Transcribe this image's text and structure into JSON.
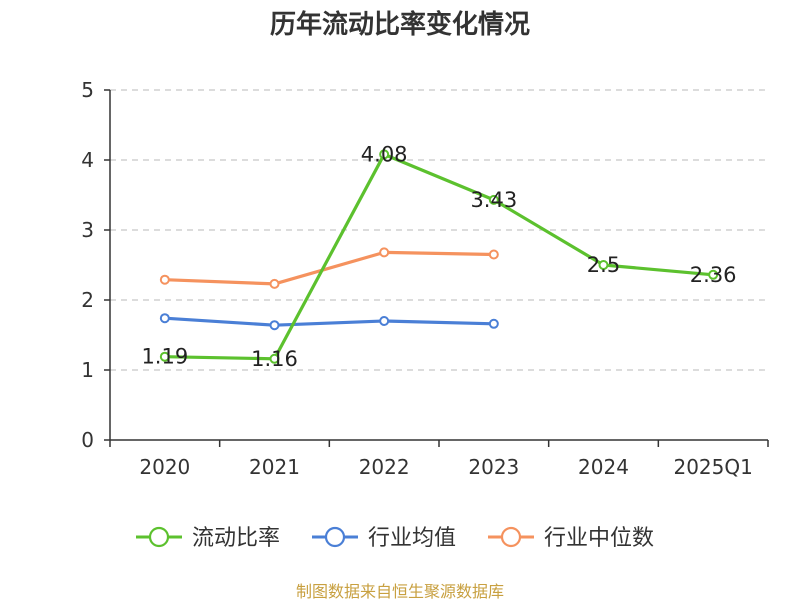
{
  "title": "历年流动比率变化情况",
  "footer": "制图数据来自恒生聚源数据库",
  "chart_data": {
    "type": "line",
    "title": "历年流动比率变化情况",
    "categories": [
      "2020",
      "2021",
      "2022",
      "2023",
      "2024",
      "2025Q1"
    ],
    "ylim": [
      0,
      5
    ],
    "yticks": [
      0,
      1,
      2,
      3,
      4,
      5
    ],
    "grid": true,
    "legend_position": "bottom",
    "series": [
      {
        "name": "流动比率",
        "color": "#5cc12e",
        "values": [
          1.19,
          1.16,
          4.08,
          3.43,
          2.5,
          2.36
        ],
        "labels": [
          "1.19",
          "1.16",
          "4.08",
          "3.43",
          "2.5",
          "2.36"
        ]
      },
      {
        "name": "行业均值",
        "color": "#4a7fd6",
        "values": [
          1.74,
          1.64,
          1.7,
          1.66,
          null,
          null
        ]
      },
      {
        "name": "行业中位数",
        "color": "#f5925e",
        "values": [
          2.29,
          2.23,
          2.68,
          2.65,
          null,
          null
        ]
      }
    ]
  }
}
